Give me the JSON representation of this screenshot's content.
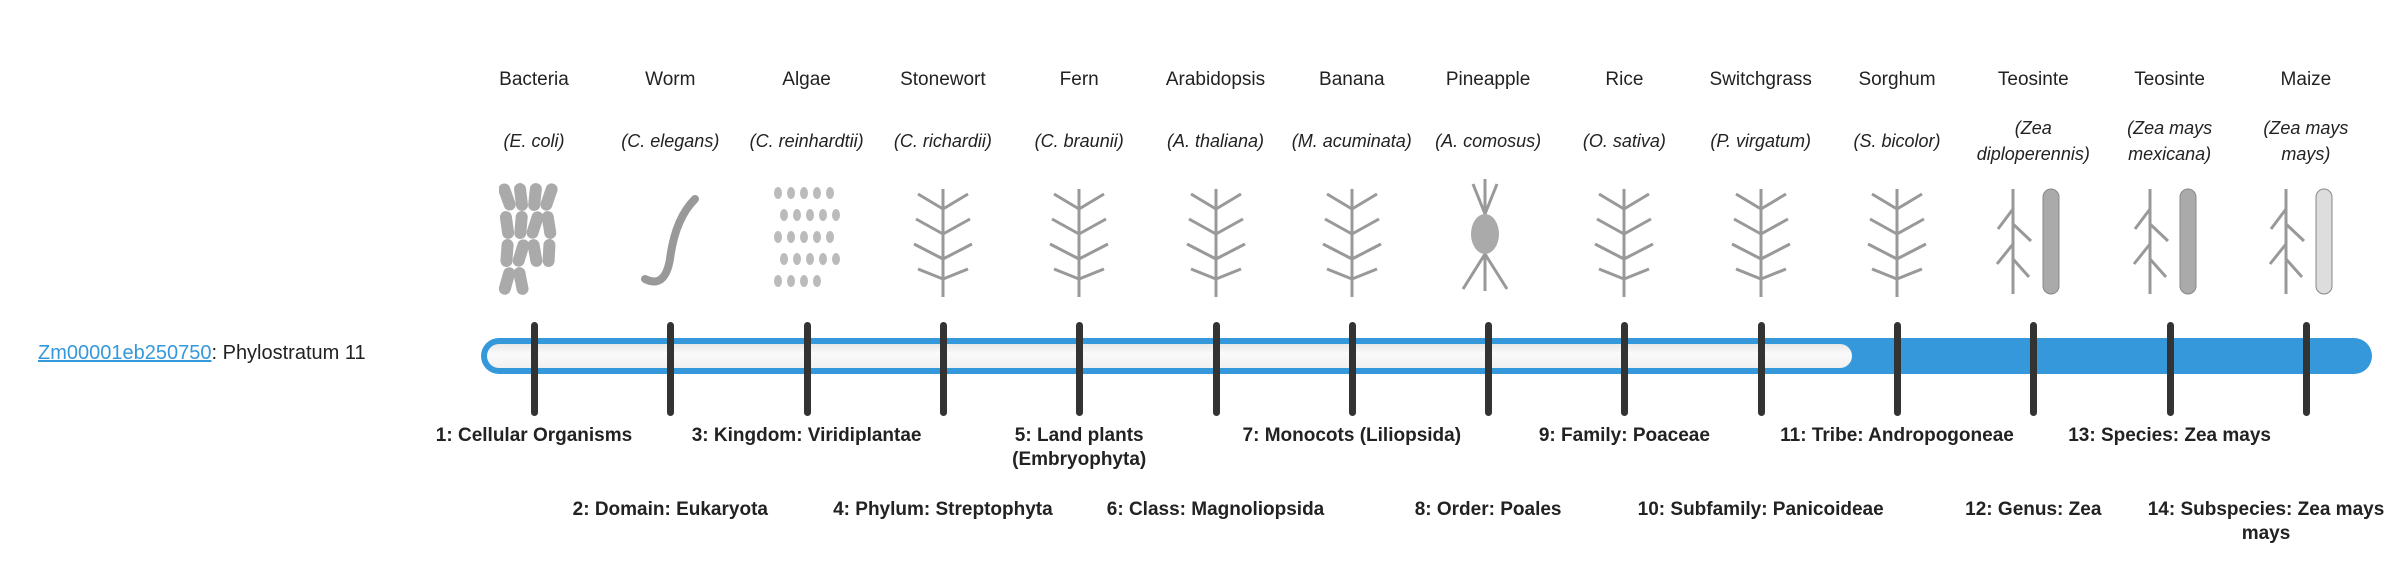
{
  "gene": {
    "id": "Zm00001eb250750",
    "suffix": ": Phylostratum 11"
  },
  "accent": "#3498db",
  "phylostratum_value": 11,
  "strata": [
    {
      "name": "Bacteria",
      "sci": "(E. coli)",
      "label_num": "1:",
      "label": "Cellular Organisms",
      "icon": "bacteria"
    },
    {
      "name": "Worm",
      "sci": "(C. elegans)",
      "label_num": "2:",
      "label": "Domain: Eukaryota",
      "icon": "worm"
    },
    {
      "name": "Algae",
      "sci": "(C. reinhardtii)",
      "label_num": "3:",
      "label": "Kingdom: Viridiplantae",
      "icon": "algae"
    },
    {
      "name": "Stonewort",
      "sci": "(C. richardii)",
      "label_num": "4:",
      "label": "Phylum: Streptophyta",
      "icon": "stonewort"
    },
    {
      "name": "Fern",
      "sci": "(C. braunii)",
      "label_num": "5:",
      "label": "Land plants (Embryophyta)",
      "icon": "fern"
    },
    {
      "name": "Arabidopsis",
      "sci": "(A. thaliana)",
      "label_num": "6:",
      "label": "Class: Magnoliopsida",
      "icon": "arabidopsis"
    },
    {
      "name": "Banana",
      "sci": "(M. acuminata)",
      "label_num": "7:",
      "label": "Monocots (Liliopsida)",
      "icon": "banana"
    },
    {
      "name": "Pineapple",
      "sci": "(A. comosus)",
      "label_num": "8:",
      "label": "Order: Poales",
      "icon": "pineapple"
    },
    {
      "name": "Rice",
      "sci": "(O. sativa)",
      "label_num": "9:",
      "label": "Family: Poaceae",
      "icon": "rice"
    },
    {
      "name": "Switchgrass",
      "sci": "(P. virgatum)",
      "label_num": "10:",
      "label": "Subfamily: Panicoideae",
      "icon": "switchgrass"
    },
    {
      "name": "Sorghum",
      "sci": "(S. bicolor)",
      "label_num": "11:",
      "label": "Tribe: Andropogoneae",
      "icon": "sorghum"
    },
    {
      "name": "Teosinte",
      "sci": "(Zea diploperennis)",
      "label_num": "12:",
      "label": "Genus: Zea",
      "icon": "teosinte"
    },
    {
      "name": "Teosinte",
      "sci": "(Zea mays mexicana)",
      "label_num": "13:",
      "label": "Species: Zea mays",
      "icon": "teosinte"
    },
    {
      "name": "Maize",
      "sci": "(Zea mays mays)",
      "label_num": "14:",
      "label": "Subspecies: Zea mays mays",
      "icon": "maize"
    }
  ]
}
